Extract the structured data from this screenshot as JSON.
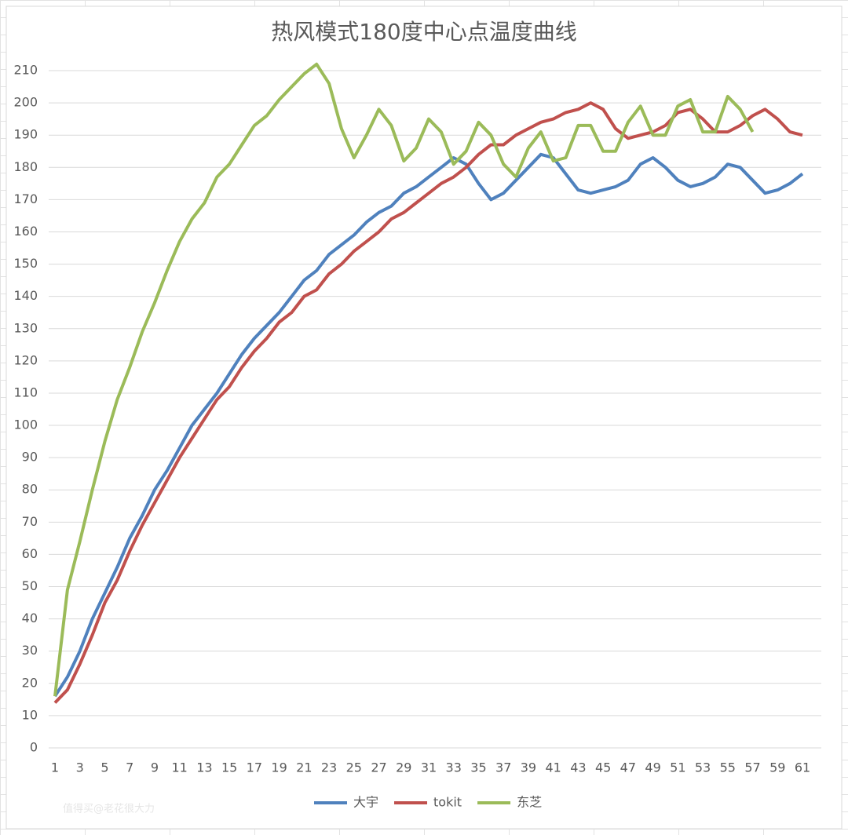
{
  "chart_data": {
    "type": "line",
    "title": "热风模式180度中心点温度曲线",
    "watermark": "值得买@老花很大力",
    "categories": [
      1,
      null,
      3,
      null,
      5,
      null,
      7,
      null,
      9,
      null,
      11,
      null,
      13,
      null,
      15,
      null,
      17,
      null,
      19,
      null,
      21,
      null,
      23,
      null,
      25,
      null,
      27,
      null,
      29,
      null,
      31,
      null,
      33,
      null,
      35,
      null,
      37,
      null,
      39,
      null,
      41,
      null,
      43,
      null,
      45,
      null,
      47,
      null,
      49,
      null,
      51,
      null,
      53,
      null,
      55,
      null,
      57,
      null,
      59,
      null,
      61
    ],
    "series": [
      {
        "name": "大宇",
        "color": "#4f81bd",
        "values": [
          16,
          22,
          30,
          40,
          48,
          56,
          65,
          72,
          80,
          86,
          93,
          100,
          105,
          110,
          116,
          122,
          127,
          131,
          135,
          140,
          145,
          148,
          153,
          156,
          159,
          163,
          166,
          168,
          172,
          174,
          177,
          180,
          183,
          181,
          175,
          170,
          172,
          176,
          180,
          184,
          183,
          178,
          173,
          172,
          173,
          174,
          176,
          181,
          183,
          180,
          176,
          174,
          175,
          177,
          181,
          180,
          176,
          172,
          173,
          175,
          178
        ]
      },
      {
        "name": "tokit",
        "color": "#c0504d",
        "values": [
          14,
          18,
          26,
          35,
          45,
          52,
          61,
          69,
          76,
          83,
          90,
          96,
          102,
          108,
          112,
          118,
          123,
          127,
          132,
          135,
          140,
          142,
          147,
          150,
          154,
          157,
          160,
          164,
          166,
          169,
          172,
          175,
          177,
          180,
          184,
          187,
          187,
          190,
          192,
          194,
          195,
          197,
          198,
          200,
          198,
          192,
          189,
          190,
          191,
          193,
          197,
          198,
          195,
          191,
          191,
          193,
          196,
          198,
          195,
          191,
          190
        ]
      },
      {
        "name": "东芝",
        "color": "#9bbb59",
        "values": [
          16,
          49,
          64,
          80,
          95,
          108,
          118,
          129,
          138,
          148,
          157,
          164,
          169,
          177,
          181,
          187,
          193,
          196,
          201,
          205,
          209,
          212,
          206,
          192,
          183,
          190,
          198,
          193,
          182,
          186,
          195,
          191,
          181,
          185,
          194,
          190,
          181,
          177,
          186,
          191,
          182,
          183,
          193,
          193,
          185,
          185,
          194,
          199,
          190,
          190,
          199,
          201,
          191,
          191,
          202,
          198,
          191,
          null,
          null,
          null,
          null
        ]
      }
    ],
    "ylim": [
      0,
      210
    ],
    "yticks": [
      0,
      10,
      20,
      30,
      40,
      50,
      60,
      70,
      80,
      90,
      100,
      110,
      120,
      130,
      140,
      150,
      160,
      170,
      180,
      190,
      200,
      210
    ],
    "grid": true,
    "legend": "bottom"
  }
}
